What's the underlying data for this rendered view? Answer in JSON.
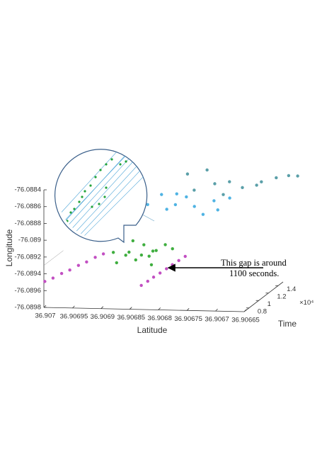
{
  "chart_data": {
    "type": "scatter3d",
    "xlabel": "Latitude",
    "ylabel": "Longitude",
    "zlabel": "Time",
    "z_multiplier": "×10⁴",
    "xlim": [
      36.907,
      36.90665
    ],
    "xticks": [
      36.907,
      36.90695,
      36.9069,
      36.90685,
      36.9068,
      36.90675,
      36.9067,
      36.90665
    ],
    "ylim": [
      -76.0898,
      -76.0884
    ],
    "yticks": [
      -76.0898,
      -76.0896,
      -76.0894,
      -76.0892,
      -76.089,
      -76.0888,
      -76.0886,
      -76.0884
    ],
    "zlim": [
      0.7,
      1.5
    ],
    "zticks": [
      0.8,
      1,
      1.2,
      1.4
    ],
    "annotations": [
      "This gap is around",
      "1100 seconds."
    ],
    "series": [
      {
        "color": "#c24fc2",
        "x": [
          36.907,
          36.90699,
          36.90698,
          36.90697,
          36.90696,
          36.90695,
          36.90694,
          36.90693
        ],
        "y": [
          -76.0895,
          -76.08948,
          -76.08945,
          -76.08943,
          -76.0894,
          -76.08938,
          -76.08935,
          -76.08933
        ],
        "z": [
          0.72,
          0.77,
          0.83,
          0.88,
          0.94,
          0.99,
          1.05,
          1.1
        ]
      },
      {
        "color": "#c24fc2",
        "x": [
          36.906834,
          36.906827,
          36.906821,
          36.906814,
          36.906807,
          36.906801,
          36.906794,
          36.906787
        ],
        "y": [
          -76.089536,
          -76.089508,
          -76.08948,
          -76.089452,
          -76.089423,
          -76.089395,
          -76.089367,
          -76.089339
        ],
        "z": [
          0.75,
          0.8,
          0.85,
          0.9,
          0.95,
          1.0,
          1.05,
          1.1
        ]
      },
      {
        "color": "#3fae3f",
        "x": [
          36.906825,
          36.906835,
          36.906855,
          36.906875,
          36.906885,
          36.906865,
          36.906845,
          36.906895,
          36.906815,
          36.906855,
          36.906875,
          36.906835,
          36.906905,
          36.906805
        ],
        "y": [
          -76.089208,
          -76.089238,
          -76.089188,
          -76.089248,
          -76.089308,
          -76.089348,
          -76.089318,
          -76.089368,
          -76.089168,
          -76.089288,
          -76.089148,
          -76.089388,
          -76.089268,
          -76.089228
        ],
        "z": [
          0.95,
          1,
          1.05,
          0.98,
          1.03,
          1,
          1.04,
          0.96,
          1.02,
          1,
          1.06,
          0.97,
          1.01,
          1.05
        ]
      },
      {
        "color": "#4fb3e3",
        "x": [
          36.906722,
          36.906752,
          36.906782,
          36.906802,
          36.906832,
          36.906862,
          36.906882,
          36.906772,
          36.906812,
          36.906842,
          36.906742,
          36.906822
        ],
        "y": [
          -76.088701,
          -76.088751,
          -76.088801,
          -76.088721,
          -76.088851,
          -76.088781,
          -76.088901,
          -76.088921,
          -76.088651,
          -76.088681,
          -76.088841,
          -76.088821
        ],
        "z": [
          1.25,
          1.28,
          1.23,
          1.3,
          1.25,
          1.21,
          1.27,
          1.29,
          1.22,
          1.26,
          1.24,
          1.31
        ]
      },
      {
        "color": "#5a9fa8",
        "x": [
          36.906616,
          36.906656,
          36.906686,
          36.906716,
          36.906746,
          36.906776,
          36.906806,
          36.906636,
          36.906676,
          36.906736,
          36.906766,
          36.906796
        ],
        "y": [
          -76.08849,
          -76.08853,
          -76.0886,
          -76.08866,
          -76.08873,
          -76.08845,
          -76.08848,
          -76.08851,
          -76.08855,
          -76.08858,
          -76.08863,
          -76.08868
        ],
        "z": [
          1.4,
          1.43,
          1.38,
          1.44,
          1.4,
          1.42,
          1.37,
          1.45,
          1.36,
          1.41,
          1.46,
          1.39
        ]
      }
    ]
  }
}
